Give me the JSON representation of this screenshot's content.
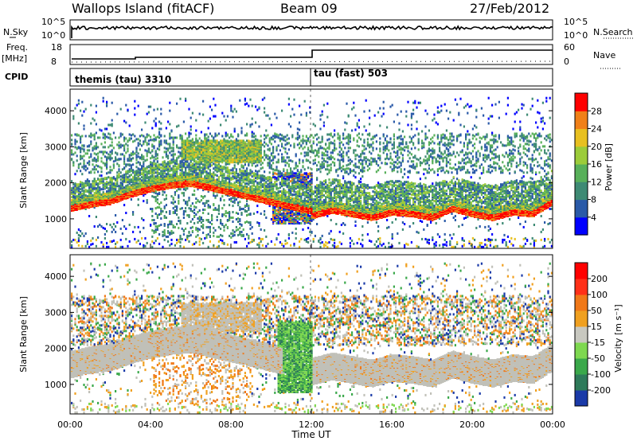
{
  "header": {
    "site": "Wallops Island (fitACF)",
    "beam": "Beam 09",
    "date": "27/Feb/2012"
  },
  "summary_panels": {
    "nsky_label": "N.Sky",
    "nsky_ticks": [
      "10^5",
      "10^0"
    ],
    "nsearch_label": "N.Search",
    "nsearch_ticks": [
      "10^5",
      "10^0"
    ],
    "freq_label": "Freq.",
    "freq_unit": "[MHz]",
    "freq_ticks": [
      "18",
      "8"
    ],
    "nave_label": "Nave",
    "nave_ticks": [
      "60",
      "0"
    ],
    "cpid_label": "CPID",
    "cpid_1": "themis (tau) 3310",
    "cpid_2": "tau (fast) 503"
  },
  "chart_data": [
    {
      "type": "heatmap",
      "name": "power",
      "ylabel": "Slant Range [km]",
      "y_ticks": [
        "1000",
        "2000",
        "3000",
        "4000"
      ],
      "ylim": [
        180,
        4600
      ],
      "x_ticks": [
        "00:00",
        "04:00",
        "08:00",
        "12:00",
        "16:00",
        "20:00",
        "00:00"
      ],
      "xlim_hours": [
        0,
        24
      ],
      "colorbar": {
        "label": "Power [dB]",
        "ticks": [
          "4",
          "8",
          "12",
          "16",
          "20",
          "24",
          "28"
        ],
        "colors": [
          "#0000ff",
          "#2a5aa8",
          "#3e8a74",
          "#58b05a",
          "#9ccc3a",
          "#e8c020",
          "#f08018",
          "#ff0000"
        ]
      },
      "main_echo_band_km": [
        [
          0,
          1300
        ],
        [
          1,
          1420
        ],
        [
          2,
          1500
        ],
        [
          3,
          1700
        ],
        [
          4,
          1850
        ],
        [
          5,
          1950
        ],
        [
          6,
          2000
        ],
        [
          12,
          1100
        ],
        [
          13,
          1250
        ],
        [
          14,
          1150
        ],
        [
          15,
          1050
        ],
        [
          16,
          1200
        ],
        [
          17,
          1150
        ],
        [
          18,
          1050
        ],
        [
          19,
          1300
        ],
        [
          20,
          1150
        ],
        [
          21,
          1050
        ],
        [
          22,
          1200
        ],
        [
          23,
          1150
        ],
        [
          24,
          1500
        ]
      ]
    },
    {
      "type": "heatmap",
      "name": "velocity",
      "ylabel": "Slant Range [km]",
      "y_ticks": [
        "1000",
        "2000",
        "3000",
        "4000"
      ],
      "ylim": [
        180,
        4600
      ],
      "x_ticks": [
        "00:00",
        "04:00",
        "08:00",
        "12:00",
        "16:00",
        "20:00",
        "00:00"
      ],
      "xlabel": "Time UT",
      "colorbar": {
        "label": "Velocity [m s⁻¹]",
        "ticks": [
          "200",
          "100",
          "50",
          "15",
          "-15",
          "-50",
          "-100",
          "-200"
        ],
        "colors": [
          "#1a3aa8",
          "#2e7a5a",
          "#3aa84a",
          "#7ed850",
          "#c8c8c0",
          "#f0a020",
          "#f07818",
          "#ff3018",
          "#ff0000"
        ]
      }
    }
  ],
  "colors": {
    "ground_scatter_gray": "#c0c0b8",
    "trace": "#000000"
  }
}
